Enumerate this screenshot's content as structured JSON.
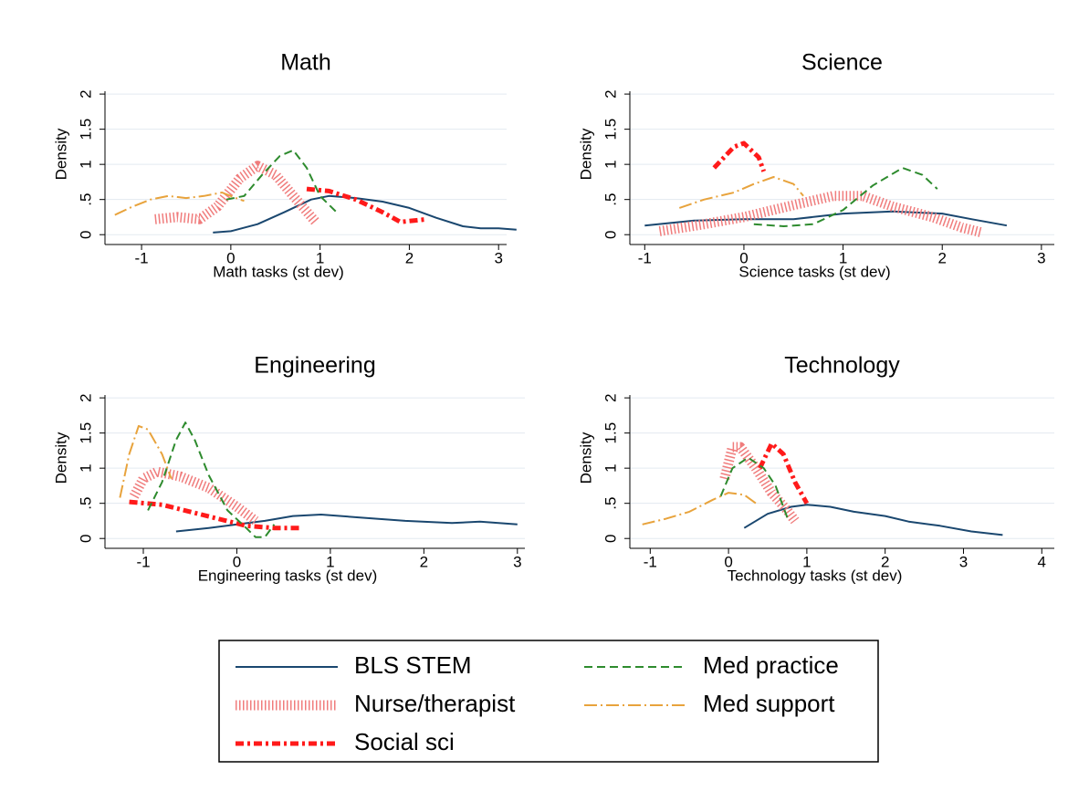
{
  "chart_data": [
    {
      "type": "line",
      "title": "Math",
      "xlabel": "Math tasks (st dev)",
      "ylabel": "Density",
      "xlim": [
        -1.41,
        3.09
      ],
      "ylim": [
        -0.14,
        2.17
      ],
      "xticks": [
        -1,
        0,
        1,
        2,
        3
      ],
      "yticks": [
        0,
        {
          "value": 0.5,
          "label": ".5"
        },
        1,
        1.5,
        2
      ],
      "grid": true,
      "series": [
        {
          "name": "BLS STEM",
          "color": "#1a476f",
          "style": "solid",
          "x": [
            -0.2,
            0,
            0.3,
            0.6,
            0.9,
            1.1,
            1.4,
            1.7,
            2.0,
            2.3,
            2.6,
            2.8,
            3.0,
            3.2
          ],
          "values": [
            0.03,
            0.05,
            0.15,
            0.32,
            0.5,
            0.55,
            0.52,
            0.47,
            0.38,
            0.24,
            0.12,
            0.09,
            0.09,
            0.07
          ]
        },
        {
          "name": "Nurse/therapist",
          "color": "#f07c7c",
          "style": "hatch",
          "x": [
            -0.85,
            -0.6,
            -0.35,
            -0.15,
            0.1,
            0.3,
            0.5,
            0.7,
            0.95
          ],
          "values": [
            0.22,
            0.25,
            0.22,
            0.4,
            0.8,
            0.98,
            0.85,
            0.55,
            0.18
          ]
        },
        {
          "name": "Social sci",
          "color": "#ff1a1a",
          "style": "thickdashdot",
          "x": [
            0.85,
            1.1,
            1.4,
            1.7,
            1.9,
            2.2
          ],
          "values": [
            0.65,
            0.62,
            0.5,
            0.32,
            0.18,
            0.22
          ]
        },
        {
          "name": "Med practice",
          "color": "#2e8b2e",
          "style": "dash",
          "x": [
            -0.05,
            0.15,
            0.35,
            0.55,
            0.7,
            0.85,
            1.0,
            1.2
          ],
          "values": [
            0.5,
            0.55,
            0.85,
            1.12,
            1.2,
            0.95,
            0.55,
            0.3
          ]
        },
        {
          "name": "Med support",
          "color": "#e8a33c",
          "style": "dashdot",
          "x": [
            -1.3,
            -1.1,
            -0.9,
            -0.7,
            -0.5,
            -0.3,
            -0.1,
            0.1,
            0.15
          ],
          "values": [
            0.28,
            0.4,
            0.5,
            0.55,
            0.52,
            0.55,
            0.6,
            0.5,
            0.48
          ]
        }
      ]
    },
    {
      "type": "line",
      "title": "Science",
      "xlabel": "Science tasks (st dev)",
      "ylabel": "Density",
      "xlim": [
        -1.15,
        3.13
      ],
      "ylim": [
        -0.14,
        2.17
      ],
      "xticks": [
        -1,
        0,
        1,
        2,
        3
      ],
      "yticks": [
        0,
        {
          "value": 0.5,
          "label": ".5"
        },
        1,
        1.5,
        2
      ],
      "grid": true,
      "series": [
        {
          "name": "BLS STEM",
          "color": "#1a476f",
          "style": "solid",
          "x": [
            -1,
            -0.5,
            0,
            0.5,
            1,
            1.5,
            2,
            2.3,
            2.65
          ],
          "values": [
            0.13,
            0.2,
            0.22,
            0.22,
            0.3,
            0.33,
            0.3,
            0.22,
            0.13
          ]
        },
        {
          "name": "Nurse/therapist",
          "color": "#f07c7c",
          "style": "hatch",
          "x": [
            -0.85,
            -0.4,
            0,
            0.5,
            0.9,
            1.2,
            1.5,
            1.9,
            2.2,
            2.4
          ],
          "values": [
            0.05,
            0.15,
            0.25,
            0.42,
            0.55,
            0.55,
            0.4,
            0.25,
            0.1,
            0.03
          ]
        },
        {
          "name": "Social sci",
          "color": "#ff1a1a",
          "style": "thickdashdot",
          "x": [
            -0.3,
            -0.1,
            0,
            0.15,
            0.2
          ],
          "values": [
            0.95,
            1.25,
            1.3,
            1.1,
            0.9
          ]
        },
        {
          "name": "Med practice",
          "color": "#2e8b2e",
          "style": "dash",
          "x": [
            0.1,
            0.4,
            0.7,
            1.0,
            1.3,
            1.6,
            1.8,
            1.95
          ],
          "values": [
            0.15,
            0.12,
            0.15,
            0.35,
            0.7,
            0.95,
            0.85,
            0.65
          ]
        },
        {
          "name": "Med support",
          "color": "#e8a33c",
          "style": "dashdot",
          "x": [
            -0.65,
            -0.4,
            -0.1,
            0.1,
            0.3,
            0.5,
            0.6
          ],
          "values": [
            0.38,
            0.5,
            0.6,
            0.72,
            0.82,
            0.72,
            0.55
          ]
        }
      ]
    },
    {
      "type": "line",
      "title": "Engineering",
      "xlabel": "Engineering tasks (st dev)",
      "ylabel": "Density",
      "xlim": [
        -1.41,
        3.08
      ],
      "ylim": [
        -0.14,
        2.17
      ],
      "xticks": [
        -1,
        0,
        1,
        2,
        3
      ],
      "yticks": [
        0,
        {
          "value": 0.5,
          "label": ".5"
        },
        1,
        1.5,
        2
      ],
      "grid": true,
      "series": [
        {
          "name": "BLS STEM",
          "color": "#1a476f",
          "style": "solid",
          "x": [
            -0.65,
            -0.3,
            0,
            0.3,
            0.6,
            0.9,
            1.3,
            1.8,
            2.3,
            2.6,
            3.0
          ],
          "values": [
            0.1,
            0.15,
            0.2,
            0.25,
            0.32,
            0.34,
            0.3,
            0.25,
            0.22,
            0.24,
            0.2
          ]
        },
        {
          "name": "Nurse/therapist",
          "color": "#f07c7c",
          "style": "hatch",
          "x": [
            -1.1,
            -1.0,
            -0.85,
            -0.6,
            -0.3,
            0,
            0.2
          ],
          "values": [
            0.6,
            0.85,
            0.95,
            0.88,
            0.72,
            0.45,
            0.25
          ]
        },
        {
          "name": "Social sci",
          "color": "#ff1a1a",
          "style": "thickdashdot",
          "x": [
            -1.15,
            -0.8,
            -0.5,
            -0.2,
            0.1,
            0.4,
            0.7
          ],
          "values": [
            0.52,
            0.48,
            0.38,
            0.28,
            0.18,
            0.15,
            0.15
          ]
        },
        {
          "name": "Med practice",
          "color": "#2e8b2e",
          "style": "dash",
          "x": [
            -0.95,
            -0.8,
            -0.65,
            -0.55,
            -0.45,
            -0.3,
            -0.1,
            0.1,
            0.2,
            0.3,
            0.4
          ],
          "values": [
            0.4,
            0.8,
            1.4,
            1.65,
            1.4,
            0.9,
            0.4,
            0.15,
            0.02,
            0.02,
            0.2
          ]
        },
        {
          "name": "Med support",
          "color": "#e8a33c",
          "style": "dashdot",
          "x": [
            -1.25,
            -1.15,
            -1.05,
            -0.95,
            -0.8,
            -0.7
          ],
          "values": [
            0.58,
            1.2,
            1.6,
            1.55,
            1.2,
            0.85
          ]
        }
      ]
    },
    {
      "type": "line",
      "title": "Technology",
      "xlabel": "Technology tasks (st dev)",
      "ylabel": "Density",
      "xlim": [
        -1.26,
        4.16
      ],
      "ylim": [
        -0.14,
        2.17
      ],
      "xticks": [
        -1,
        0,
        1,
        2,
        3,
        4
      ],
      "yticks": [
        0,
        {
          "value": 0.5,
          "label": ".5"
        },
        1,
        1.5,
        2
      ],
      "grid": true,
      "series": [
        {
          "name": "BLS STEM",
          "color": "#1a476f",
          "style": "solid",
          "x": [
            0.2,
            0.5,
            0.8,
            1.0,
            1.3,
            1.6,
            2.0,
            2.3,
            2.7,
            3.1,
            3.5
          ],
          "values": [
            0.15,
            0.35,
            0.45,
            0.48,
            0.45,
            0.38,
            0.32,
            0.24,
            0.18,
            0.1,
            0.05
          ]
        },
        {
          "name": "Nurse/therapist",
          "color": "#f07c7c",
          "style": "hatch",
          "x": [
            -0.05,
            0.05,
            0.15,
            0.35,
            0.55,
            0.75,
            0.85
          ],
          "values": [
            0.85,
            1.3,
            1.3,
            1.0,
            0.65,
            0.4,
            0.25
          ]
        },
        {
          "name": "Social sci",
          "color": "#ff1a1a",
          "style": "thickdashdot",
          "x": [
            0.4,
            0.55,
            0.7,
            0.85,
            1.0
          ],
          "values": [
            1.0,
            1.35,
            1.2,
            0.8,
            0.5
          ]
        },
        {
          "name": "Med practice",
          "color": "#2e8b2e",
          "style": "dash",
          "x": [
            -0.1,
            0.05,
            0.25,
            0.45,
            0.6,
            0.75
          ],
          "values": [
            0.6,
            1.0,
            1.15,
            1.0,
            0.75,
            0.3
          ]
        },
        {
          "name": "Med support",
          "color": "#e8a33c",
          "style": "dashdot",
          "x": [
            -1.1,
            -0.8,
            -0.5,
            -0.2,
            0,
            0.2,
            0.35
          ],
          "values": [
            0.2,
            0.28,
            0.38,
            0.55,
            0.65,
            0.62,
            0.5
          ]
        }
      ]
    }
  ]
}
